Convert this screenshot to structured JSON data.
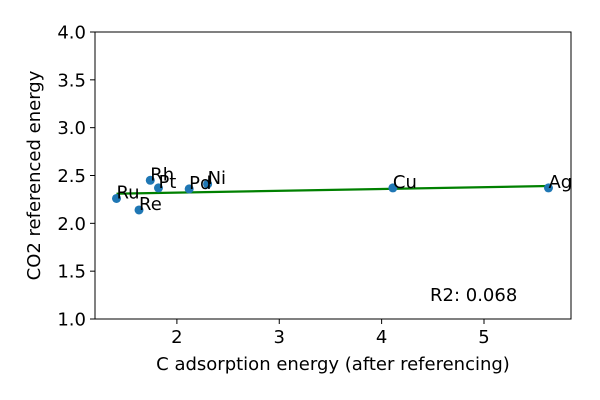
{
  "chart_data": {
    "type": "scatter",
    "xlabel": "C adsorption energy (after referencing)",
    "ylabel": "CO2 referenced energy",
    "xlim": [
      1.2,
      5.85
    ],
    "ylim": [
      1.0,
      4.0
    ],
    "xticks": [
      2,
      3,
      4,
      5
    ],
    "yticks": [
      1.0,
      1.5,
      2.0,
      2.5,
      3.0,
      3.5,
      4.0
    ],
    "xtick_labels": [
      "2",
      "3",
      "4",
      "5"
    ],
    "ytick_labels": [
      "1.0",
      "1.5",
      "2.0",
      "2.5",
      "3.0",
      "3.5",
      "4.0"
    ],
    "grid": false,
    "marker_color": "#1f77b4",
    "fit_color": "#008000",
    "points": [
      {
        "label": "Ru",
        "x": 1.41,
        "y": 2.26
      },
      {
        "label": "Re",
        "x": 1.63,
        "y": 2.14
      },
      {
        "label": "Rh",
        "x": 1.74,
        "y": 2.45
      },
      {
        "label": "Pt",
        "x": 1.82,
        "y": 2.37
      },
      {
        "label": "Pd",
        "x": 2.12,
        "y": 2.36
      },
      {
        "label": "Ni",
        "x": 2.3,
        "y": 2.41
      },
      {
        "label": "Cu",
        "x": 4.11,
        "y": 2.37
      },
      {
        "label": "Ag",
        "x": 5.63,
        "y": 2.37
      }
    ],
    "fit_line": {
      "x": [
        1.41,
        5.63
      ],
      "y": [
        2.31,
        2.39
      ]
    },
    "annotation": "R2: 0.068"
  }
}
